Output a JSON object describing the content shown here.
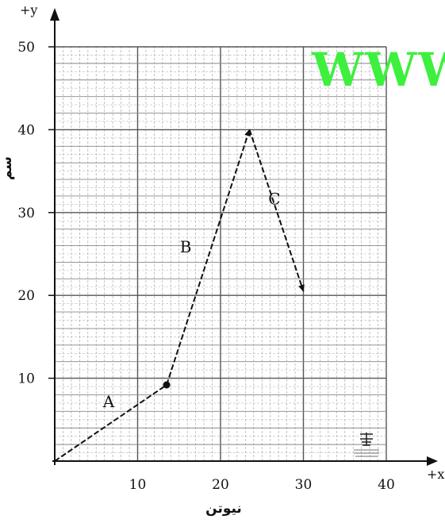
{
  "chart_data": {
    "type": "line",
    "x_axis_tip": "+x",
    "y_axis_tip": "+y",
    "xlabel": "نيوتن",
    "ylabel": "سم",
    "xlim": [
      0,
      40
    ],
    "ylim": [
      0,
      50
    ],
    "x_ticks": [
      "10",
      "20",
      "30",
      "40"
    ],
    "y_ticks": [
      "10",
      "20",
      "30",
      "40",
      "50"
    ],
    "grid": true,
    "points": [
      {
        "x": 0,
        "y": 0
      },
      {
        "x": 13.5,
        "y": 9.2
      },
      {
        "x": 23.5,
        "y": 40
      },
      {
        "x": 30,
        "y": 20.5
      }
    ],
    "segment_labels": [
      {
        "text": "A",
        "x": 6.5,
        "y": 6.5
      },
      {
        "text": "B",
        "x": 15.8,
        "y": 25.2
      },
      {
        "text": "C",
        "x": 26.5,
        "y": 31
      },
      {
        "text": "",
        "x": 0,
        "y": 0
      }
    ],
    "watermark": "WWW",
    "stamp_icon": "seal-stamp-icon",
    "line_color": "#111111",
    "grid_color": "#777777",
    "watermark_color": "#3df03d"
  }
}
